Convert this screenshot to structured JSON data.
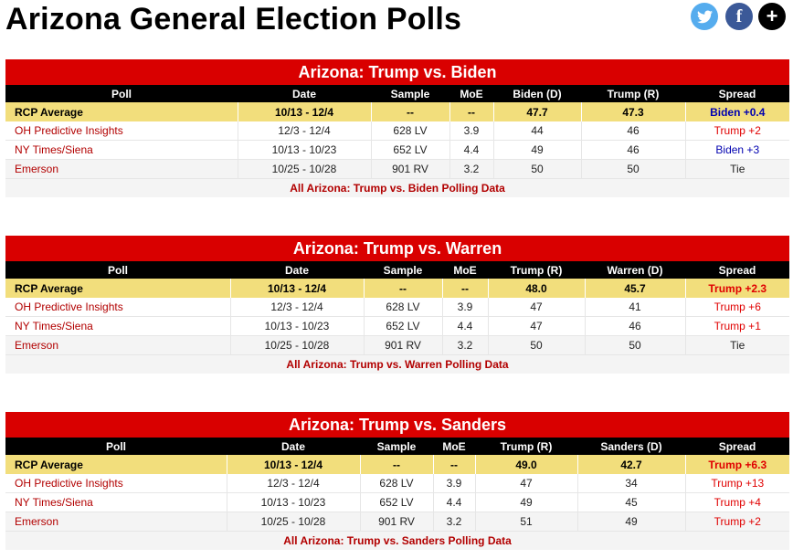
{
  "page_title": "Arizona General Election Polls",
  "social": {
    "twitter": "twitter-icon",
    "facebook": "f",
    "plus": "+"
  },
  "tables": [
    {
      "caption": "Arizona: Trump vs. Biden",
      "headers": [
        "Poll",
        "Date",
        "Sample",
        "MoE",
        "Biden (D)",
        "Trump (R)",
        "Spread"
      ],
      "average": {
        "poll": "RCP Average",
        "date": "10/13 - 12/4",
        "sample": "--",
        "moe": "--",
        "a": "47.7",
        "b": "47.3",
        "spread": "Biden +0.4",
        "spread_color": "blue"
      },
      "rows": [
        {
          "poll": "OH Predictive Insights",
          "date": "12/3 - 12/4",
          "sample": "628 LV",
          "moe": "3.9",
          "a": "44",
          "b": "46",
          "spread": "Trump +2",
          "spread_color": "red"
        },
        {
          "poll": "NY Times/Siena",
          "date": "10/13 - 10/23",
          "sample": "652 LV",
          "moe": "4.4",
          "a": "49",
          "b": "46",
          "spread": "Biden +3",
          "spread_color": "blue"
        },
        {
          "poll": "Emerson",
          "date": "10/25 - 10/28",
          "sample": "901 RV",
          "moe": "3.2",
          "a": "50",
          "b": "50",
          "spread": "Tie",
          "spread_color": "black"
        }
      ],
      "footer": "All Arizona: Trump vs. Biden Polling Data"
    },
    {
      "caption": "Arizona: Trump vs. Warren",
      "headers": [
        "Poll",
        "Date",
        "Sample",
        "MoE",
        "Trump (R)",
        "Warren (D)",
        "Spread"
      ],
      "average": {
        "poll": "RCP Average",
        "date": "10/13 - 12/4",
        "sample": "--",
        "moe": "--",
        "a": "48.0",
        "b": "45.7",
        "spread": "Trump +2.3",
        "spread_color": "red"
      },
      "rows": [
        {
          "poll": "OH Predictive Insights",
          "date": "12/3 - 12/4",
          "sample": "628 LV",
          "moe": "3.9",
          "a": "47",
          "b": "41",
          "spread": "Trump +6",
          "spread_color": "red"
        },
        {
          "poll": "NY Times/Siena",
          "date": "10/13 - 10/23",
          "sample": "652 LV",
          "moe": "4.4",
          "a": "47",
          "b": "46",
          "spread": "Trump +1",
          "spread_color": "red"
        },
        {
          "poll": "Emerson",
          "date": "10/25 - 10/28",
          "sample": "901 RV",
          "moe": "3.2",
          "a": "50",
          "b": "50",
          "spread": "Tie",
          "spread_color": "black"
        }
      ],
      "footer": "All Arizona: Trump vs. Warren Polling Data"
    },
    {
      "caption": "Arizona: Trump vs. Sanders",
      "headers": [
        "Poll",
        "Date",
        "Sample",
        "MoE",
        "Trump (R)",
        "Sanders (D)",
        "Spread"
      ],
      "average": {
        "poll": "RCP Average",
        "date": "10/13 - 12/4",
        "sample": "--",
        "moe": "--",
        "a": "49.0",
        "b": "42.7",
        "spread": "Trump +6.3",
        "spread_color": "red"
      },
      "rows": [
        {
          "poll": "OH Predictive Insights",
          "date": "12/3 - 12/4",
          "sample": "628 LV",
          "moe": "3.9",
          "a": "47",
          "b": "34",
          "spread": "Trump +13",
          "spread_color": "red"
        },
        {
          "poll": "NY Times/Siena",
          "date": "10/13 - 10/23",
          "sample": "652 LV",
          "moe": "4.4",
          "a": "49",
          "b": "45",
          "spread": "Trump +4",
          "spread_color": "red"
        },
        {
          "poll": "Emerson",
          "date": "10/25 - 10/28",
          "sample": "901 RV",
          "moe": "3.2",
          "a": "51",
          "b": "49",
          "spread": "Trump +2",
          "spread_color": "red"
        }
      ],
      "footer": "All Arizona: Trump vs. Sanders Polling Data"
    }
  ]
}
